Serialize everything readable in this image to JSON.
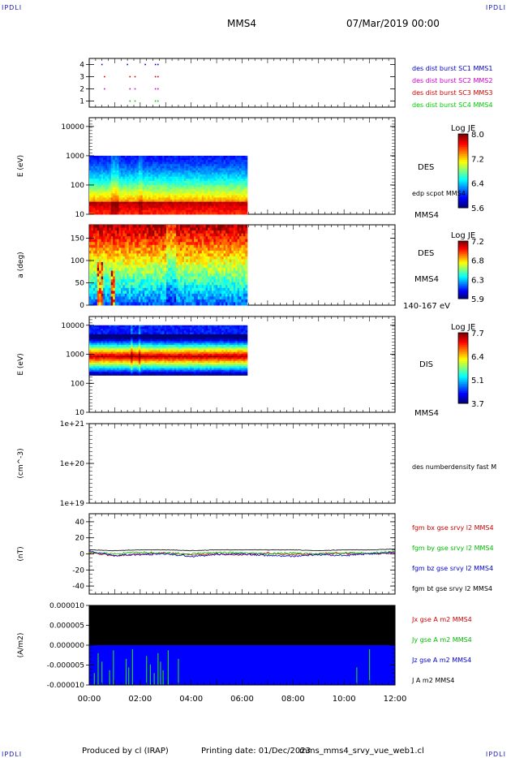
{
  "header": {
    "corner_logo": "IPDLI",
    "spacecraft": "MMS4",
    "datetime": "07/Mar/2019 00:00"
  },
  "footer": {
    "produced_by": "Produced by cl (IRAP)",
    "printing_date": "Printing date: 01/Dec/2023",
    "filename": "mms_mms4_srvy_vue_web1.cl"
  },
  "chart_data": [
    {
      "type": "scatter",
      "panel": "burst",
      "yticks": [
        "4",
        "3",
        "2",
        "1"
      ],
      "ylim": [
        0.5,
        4.5
      ],
      "xlim": [
        0,
        12
      ],
      "series": [
        {
          "name": "des dist burst SC1 MMS1",
          "color": "#0000cc",
          "y": 4,
          "x": [
            0.5,
            1.5,
            2.2,
            2.6,
            2.7
          ]
        },
        {
          "name": "des dist burst SC2 MMS2",
          "color": "#cc00cc",
          "y": 2,
          "x": [
            0.6,
            1.6,
            1.8,
            2.6,
            2.7
          ]
        },
        {
          "name": "des dist burst SC3 MMS3",
          "color": "#cc0000",
          "y": 3,
          "x": [
            0.6,
            1.6,
            1.8,
            2.6,
            2.7
          ]
        },
        {
          "name": "des dist burst SC4 MMS4",
          "color": "#00cc00",
          "y": 1,
          "x": [
            1.6,
            1.8,
            2.6,
            2.7
          ]
        }
      ]
    },
    {
      "type": "heatmap",
      "panel": "des-energy",
      "ylabel": "E (eV)",
      "yscale": "log",
      "ylim": [
        10,
        20000
      ],
      "yticks": [
        "10000",
        "1000",
        "100",
        "10"
      ],
      "xlim": [
        0,
        12
      ],
      "data_range_hours": [
        0,
        6.2
      ],
      "colorbar": {
        "title": "Log JE",
        "ticks": [
          "8.0",
          "7.2",
          "6.4",
          "5.6"
        ]
      },
      "labels": [
        "DES",
        "edp scpot MMS4",
        "MMS4"
      ]
    },
    {
      "type": "heatmap",
      "panel": "des-pitch",
      "ylabel": "a (deg)",
      "ylim": [
        0,
        180
      ],
      "yticks": [
        "150",
        "100",
        "50",
        "0"
      ],
      "xlim": [
        0,
        12
      ],
      "data_range_hours": [
        0,
        6.2
      ],
      "colorbar": {
        "title": "Log JE",
        "ticks": [
          "7.2",
          "6.8",
          "6.3",
          "5.9"
        ]
      },
      "labels": [
        "DES",
        "MMS4",
        "140-167 eV"
      ]
    },
    {
      "type": "heatmap",
      "panel": "dis-energy",
      "ylabel": "E (eV)",
      "yscale": "log",
      "ylim": [
        10,
        20000
      ],
      "yticks": [
        "10000",
        "1000",
        "100",
        "10"
      ],
      "xlim": [
        0,
        12
      ],
      "data_range_hours": [
        0,
        6.2
      ],
      "colorbar": {
        "title": "Log JE",
        "ticks": [
          "7.7",
          "6.4",
          "5.1",
          "3.7"
        ]
      },
      "labels": [
        "DIS",
        "MMS4"
      ]
    },
    {
      "type": "line",
      "panel": "density",
      "ylabel": "(cm^-3)",
      "yscale": "log",
      "yticks": [
        "1e+21",
        "1e+20",
        "1e+19"
      ],
      "xlim": [
        0,
        12
      ],
      "series": [
        {
          "name": "des numberdensity fast M",
          "values": []
        }
      ]
    },
    {
      "type": "line",
      "panel": "fgm",
      "ylabel": "(nT)",
      "ylim": [
        -50,
        50
      ],
      "yticks": [
        "40",
        "20",
        "0",
        "-20",
        "-40"
      ],
      "xlim": [
        0,
        12
      ],
      "series": [
        {
          "name": "fgm bx gse srvy l2 MMS4",
          "color": "#cc0000",
          "x": [
            0,
            1,
            2,
            3,
            4,
            5,
            6,
            7,
            8,
            9,
            10,
            11,
            12
          ],
          "values": [
            1,
            -2,
            0,
            1,
            -1,
            0,
            -1,
            1,
            -1,
            0,
            1,
            0,
            1
          ]
        },
        {
          "name": "fgm by gse srvy l2 MMS4",
          "color": "#00bb00",
          "x": [
            0,
            1,
            2,
            3,
            4,
            5,
            6,
            7,
            8,
            9,
            10,
            11,
            12
          ],
          "values": [
            2,
            0,
            2,
            1,
            0,
            2,
            1,
            0,
            1,
            0,
            1,
            1,
            3
          ]
        },
        {
          "name": "fgm bz gse srvy l2 MMS4",
          "color": "#0000cc",
          "x": [
            0,
            1,
            2,
            3,
            4,
            5,
            6,
            7,
            8,
            9,
            10,
            11,
            12
          ],
          "values": [
            3,
            -2,
            -1,
            0,
            -3,
            -1,
            0,
            -2,
            -3,
            -1,
            -2,
            0,
            2
          ]
        },
        {
          "name": "fgm bt gse srvy l2 MMS4",
          "color": "#000000",
          "x": [
            0,
            1,
            2,
            3,
            4,
            5,
            6,
            7,
            8,
            9,
            10,
            11,
            12
          ],
          "values": [
            5,
            4,
            5,
            5,
            4,
            5,
            5,
            5,
            5,
            4,
            5,
            5,
            6
          ]
        }
      ]
    },
    {
      "type": "area",
      "panel": "current",
      "ylabel": "(A/m2)",
      "ylim": [
        -1e-05,
        1e-05
      ],
      "yticks": [
        "0.000010",
        "0.000005",
        "0.000000",
        "-0.000005",
        "-0.000010"
      ],
      "xlim": [
        0,
        12
      ],
      "xticks": [
        "00:00",
        "02:00",
        "04:00",
        "06:00",
        "08:00",
        "10:00",
        "12:00"
      ],
      "series": [
        {
          "name": "Jx gse A m2 MMS4",
          "color": "#cc0000"
        },
        {
          "name": "Jy gse A m2 MMS4",
          "color": "#00bb00"
        },
        {
          "name": "Jz gse A m2 MMS4",
          "color": "#0000cc"
        },
        {
          "name": "J A m2 MMS4",
          "color": "#000000"
        }
      ]
    }
  ]
}
